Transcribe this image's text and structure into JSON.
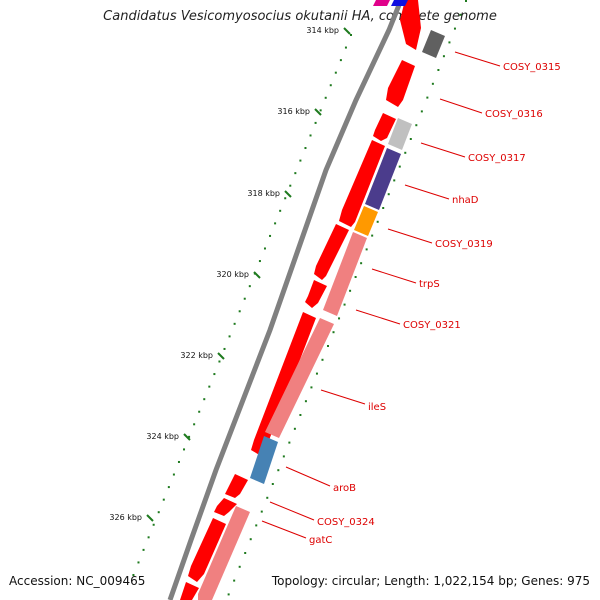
{
  "title": "Candidatus Vesicomyosocius okutanii HA, complete genome",
  "footer": {
    "accession": "Accession: NC_009465",
    "stats": "Topology: circular; Length: 1,022,154 bp; Genes: 975"
  },
  "ticks": [
    "314 kbp",
    "316 kbp",
    "318 kbp",
    "320 kbp",
    "322 kbp",
    "324 kbp",
    "326 kbp"
  ],
  "labels": [
    "COSY_0315",
    "COSY_0316",
    "COSY_0317",
    "nhaD",
    "COSY_0319",
    "trpS",
    "COSY_0321",
    "ileS",
    "aroB",
    "COSY_0324",
    "gatC"
  ],
  "colors": {
    "backbone": "#808080",
    "cds": "#ff0000",
    "rna_like": "#f08080",
    "gray_gene": "#c0c0c0",
    "dark_gray_gene": "#606060",
    "purple_gene": "#4b3c8c",
    "orange_gene": "#ff9900",
    "blue_gene": "#4682b4",
    "label_text": "#dd0000",
    "tick_marks": "#1e7a1e"
  }
}
